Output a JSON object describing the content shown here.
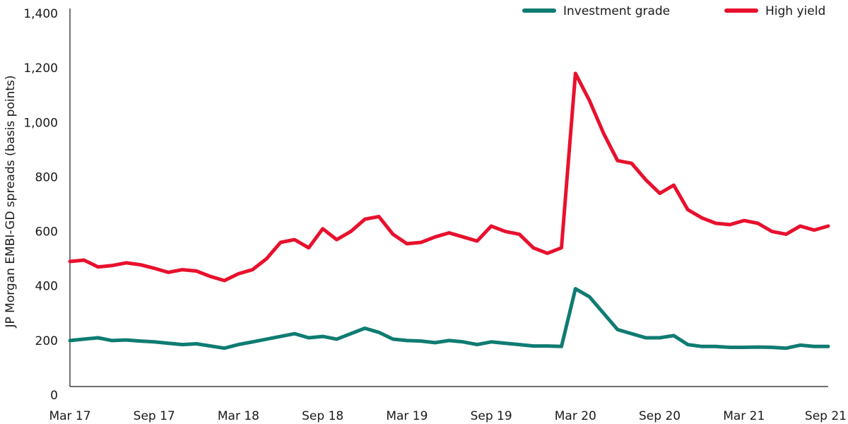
{
  "chart_data": {
    "type": "line",
    "title": "",
    "xlabel": "",
    "ylabel": "JP Morgan EMBI-GD spreads (basis points)",
    "ylim": [
      0,
      1400
    ],
    "yticks": [
      0,
      200,
      400,
      600,
      800,
      1000,
      1200,
      1400
    ],
    "ytick_labels": [
      "0",
      "200",
      "400",
      "600",
      "800",
      "1,000",
      "1,200",
      "1,400"
    ],
    "xlim": [
      "2017-03",
      "2021-09"
    ],
    "xticks": [
      "2017-03",
      "2017-09",
      "2018-03",
      "2018-09",
      "2019-03",
      "2019-09",
      "2020-03",
      "2020-09",
      "2021-03",
      "2021-09"
    ],
    "xtick_labels": [
      "Mar 17",
      "Sep 17",
      "Mar 18",
      "Sep 18",
      "Mar 19",
      "Sep 19",
      "Mar 20",
      "Sep 20",
      "Mar 21",
      "Sep 21"
    ],
    "grid": false,
    "legend_position": "top-right",
    "series": [
      {
        "name": "Investment grade",
        "color": "#0e7c72",
        "points": [
          [
            "2017-03",
            200
          ],
          [
            "2017-04",
            205
          ],
          [
            "2017-05",
            210
          ],
          [
            "2017-06",
            200
          ],
          [
            "2017-07",
            202
          ],
          [
            "2017-08",
            198
          ],
          [
            "2017-09",
            195
          ],
          [
            "2017-10",
            190
          ],
          [
            "2017-11",
            185
          ],
          [
            "2017-12",
            188
          ],
          [
            "2018-01",
            180
          ],
          [
            "2018-02",
            172
          ],
          [
            "2018-03",
            185
          ],
          [
            "2018-04",
            195
          ],
          [
            "2018-05",
            205
          ],
          [
            "2018-06",
            215
          ],
          [
            "2018-07",
            225
          ],
          [
            "2018-08",
            210
          ],
          [
            "2018-09",
            215
          ],
          [
            "2018-10",
            205
          ],
          [
            "2018-11",
            225
          ],
          [
            "2018-12",
            245
          ],
          [
            "2019-01",
            230
          ],
          [
            "2019-02",
            205
          ],
          [
            "2019-03",
            200
          ],
          [
            "2019-04",
            198
          ],
          [
            "2019-05",
            192
          ],
          [
            "2019-06",
            200
          ],
          [
            "2019-07",
            195
          ],
          [
            "2019-08",
            185
          ],
          [
            "2019-09",
            195
          ],
          [
            "2019-10",
            190
          ],
          [
            "2019-11",
            185
          ],
          [
            "2019-12",
            180
          ],
          [
            "2020-01",
            180
          ],
          [
            "2020-02",
            178
          ],
          [
            "2020-03",
            390
          ],
          [
            "2020-04",
            360
          ],
          [
            "2020-05",
            300
          ],
          [
            "2020-06",
            240
          ],
          [
            "2020-07",
            225
          ],
          [
            "2020-08",
            210
          ],
          [
            "2020-09",
            210
          ],
          [
            "2020-10",
            218
          ],
          [
            "2020-11",
            185
          ],
          [
            "2020-12",
            178
          ],
          [
            "2021-01",
            178
          ],
          [
            "2021-02",
            175
          ],
          [
            "2021-03",
            175
          ],
          [
            "2021-04",
            176
          ],
          [
            "2021-05",
            175
          ],
          [
            "2021-06",
            172
          ],
          [
            "2021-07",
            183
          ],
          [
            "2021-08",
            178
          ],
          [
            "2021-09",
            178
          ]
        ]
      },
      {
        "name": "High yield",
        "color": "#e8112d",
        "points": [
          [
            "2017-03",
            490
          ],
          [
            "2017-04",
            495
          ],
          [
            "2017-05",
            470
          ],
          [
            "2017-06",
            475
          ],
          [
            "2017-07",
            485
          ],
          [
            "2017-08",
            478
          ],
          [
            "2017-09",
            465
          ],
          [
            "2017-10",
            450
          ],
          [
            "2017-11",
            460
          ],
          [
            "2017-12",
            455
          ],
          [
            "2018-01",
            435
          ],
          [
            "2018-02",
            420
          ],
          [
            "2018-03",
            445
          ],
          [
            "2018-04",
            460
          ],
          [
            "2018-05",
            500
          ],
          [
            "2018-06",
            560
          ],
          [
            "2018-07",
            570
          ],
          [
            "2018-08",
            540
          ],
          [
            "2018-09",
            610
          ],
          [
            "2018-10",
            570
          ],
          [
            "2018-11",
            600
          ],
          [
            "2018-12",
            645
          ],
          [
            "2019-01",
            655
          ],
          [
            "2019-02",
            590
          ],
          [
            "2019-03",
            555
          ],
          [
            "2019-04",
            560
          ],
          [
            "2019-05",
            580
          ],
          [
            "2019-06",
            595
          ],
          [
            "2019-07",
            580
          ],
          [
            "2019-08",
            565
          ],
          [
            "2019-09",
            620
          ],
          [
            "2019-10",
            600
          ],
          [
            "2019-11",
            590
          ],
          [
            "2019-12",
            540
          ],
          [
            "2020-01",
            520
          ],
          [
            "2020-02",
            540
          ],
          [
            "2020-03",
            1180
          ],
          [
            "2020-04",
            1080
          ],
          [
            "2020-05",
            960
          ],
          [
            "2020-06",
            860
          ],
          [
            "2020-07",
            850
          ],
          [
            "2020-08",
            790
          ],
          [
            "2020-09",
            740
          ],
          [
            "2020-10",
            770
          ],
          [
            "2020-11",
            680
          ],
          [
            "2020-12",
            650
          ],
          [
            "2021-01",
            630
          ],
          [
            "2021-02",
            625
          ],
          [
            "2021-03",
            640
          ],
          [
            "2021-04",
            630
          ],
          [
            "2021-05",
            600
          ],
          [
            "2021-06",
            590
          ],
          [
            "2021-07",
            620
          ],
          [
            "2021-08",
            605
          ],
          [
            "2021-09",
            620
          ]
        ]
      }
    ]
  }
}
